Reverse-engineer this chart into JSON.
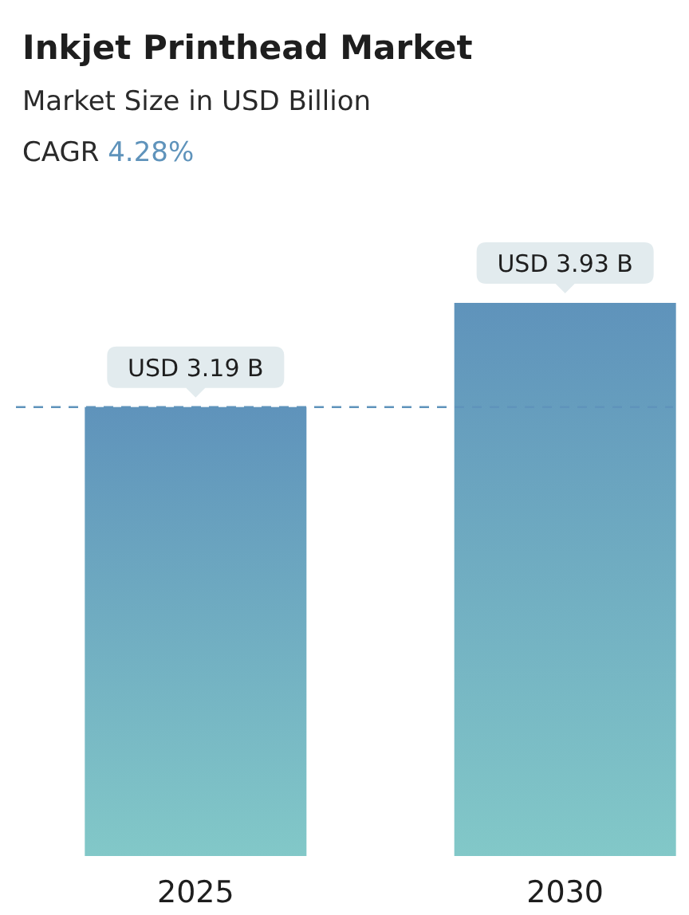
{
  "chart_data": {
    "type": "bar",
    "title": "Inkjet Printhead Market",
    "subtitle": "Market Size in USD Billion",
    "annotations": [
      "CAGR 4.28%"
    ],
    "categories": [
      "2025",
      "2030"
    ],
    "values": [
      3.19,
      3.93
    ],
    "value_labels": [
      "USD 3.19 B",
      "USD 3.93 B"
    ],
    "color": "#5f93bb",
    "ref_lines": [
      {
        "axis": "y",
        "value": 3.19,
        "color": "#5f93bb",
        "line_style": "dashed"
      }
    ]
  }
}
